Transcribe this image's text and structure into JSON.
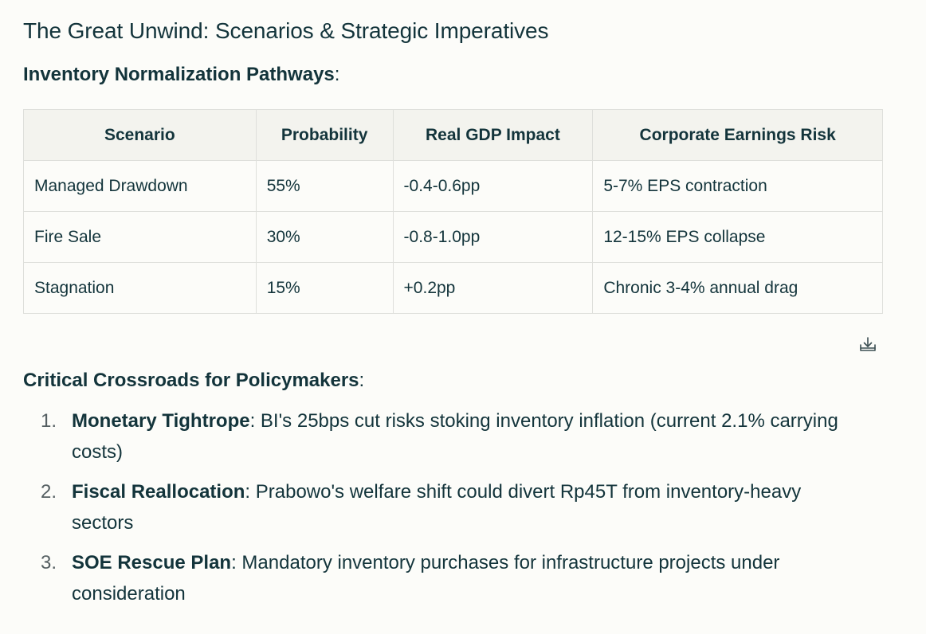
{
  "title": "The Great Unwind: Scenarios & Strategic Imperatives",
  "section1": {
    "heading": "Inventory Normalization Pathways",
    "suffix": ":"
  },
  "table": {
    "headers": [
      "Scenario",
      "Probability",
      "Real GDP Impact",
      "Corporate Earnings Risk"
    ],
    "rows": [
      [
        "Managed Drawdown",
        "55%",
        "-0.4-0.6pp",
        "5-7% EPS contraction"
      ],
      [
        "Fire Sale",
        "30%",
        "-0.8-1.0pp",
        "12-15% EPS collapse"
      ],
      [
        "Stagnation",
        "15%",
        "+0.2pp",
        "Chronic 3-4% annual drag"
      ]
    ]
  },
  "download_icon": "download-icon",
  "section2": {
    "heading": "Critical Crossroads for Policymakers",
    "suffix": ":"
  },
  "list": [
    {
      "num": "1.",
      "lead": "Monetary Tightrope",
      "text": ": BI's 25bps cut risks stoking inventory inflation (current 2.1% carrying costs)"
    },
    {
      "num": "2.",
      "lead": "Fiscal Reallocation",
      "text": ": Prabowo's welfare shift could divert Rp45T from inventory-heavy sectors"
    },
    {
      "num": "3.",
      "lead": "SOE Rescue Plan",
      "text": ": Mandatory inventory purchases for infrastructure projects under consideration"
    }
  ],
  "colors": {
    "text": "#13343b",
    "background": "#fcfcf9",
    "header_bg": "#f3f3ee",
    "border": "#dedfdb",
    "list_number": "#555f62"
  }
}
